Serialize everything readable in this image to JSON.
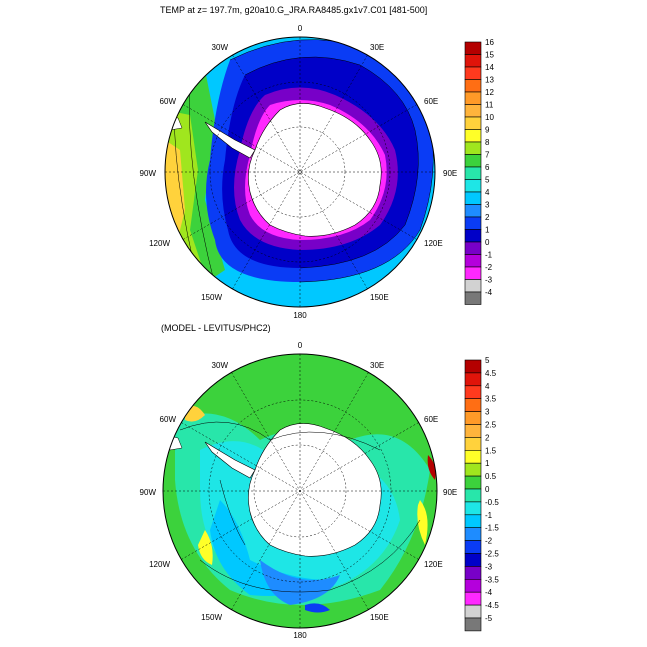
{
  "panels": [
    {
      "id": "top",
      "title": "TEMP at z= 197.7m, g20a10.G_JRA.RA8485.gx1v7.C01 [481-500]",
      "lon_labels": [
        "0",
        "30E",
        "60E",
        "90E",
        "120E",
        "150E",
        "180",
        "150W",
        "120W",
        "90W",
        "60W",
        "30W"
      ],
      "colorbar": {
        "labels": [
          "16",
          "15",
          "14",
          "13",
          "12",
          "11",
          "10",
          "9",
          "8",
          "7",
          "6",
          "5",
          "4",
          "3",
          "2",
          "1",
          "0",
          "-1",
          "-2",
          "-3",
          "-4"
        ],
        "colors": [
          "#b40000",
          "#e0140a",
          "#ff3a1e",
          "#ff6e14",
          "#ff9a28",
          "#ffb43c",
          "#ffd23c",
          "#ffff28",
          "#a0e61e",
          "#3cd23c",
          "#28e6aa",
          "#1ee6e6",
          "#00c8ff",
          "#1e8cff",
          "#0a3cf5",
          "#0000c8",
          "#7800c8",
          "#b400dc",
          "#ff28ff",
          "#d2d2d2",
          "#787878"
        ]
      }
    },
    {
      "id": "bottom",
      "title": "(MODEL - LEVITUS/PHC2)",
      "lon_labels": [
        "0",
        "30E",
        "60E",
        "90E",
        "120E",
        "150E",
        "180",
        "150W",
        "120W",
        "90W",
        "60W",
        "30W"
      ],
      "colorbar": {
        "labels": [
          "5",
          "4.5",
          "4",
          "3.5",
          "3",
          "2.5",
          "2",
          "1.5",
          "1",
          "0.5",
          "0",
          "-0.5",
          "-1",
          "-1.5",
          "-2",
          "-2.5",
          "-3",
          "-3.5",
          "-4",
          "-4.5",
          "-5"
        ],
        "colors": [
          "#b40000",
          "#e0140a",
          "#ff3a1e",
          "#ff6e14",
          "#ff9a28",
          "#ffb43c",
          "#ffd23c",
          "#ffff28",
          "#a0e61e",
          "#3cd23c",
          "#28e6aa",
          "#1ee6e6",
          "#00c8ff",
          "#1e8cff",
          "#0a3cf5",
          "#0000c8",
          "#7800c8",
          "#b400dc",
          "#ff28ff",
          "#d2d2d2",
          "#787878"
        ]
      }
    }
  ]
}
